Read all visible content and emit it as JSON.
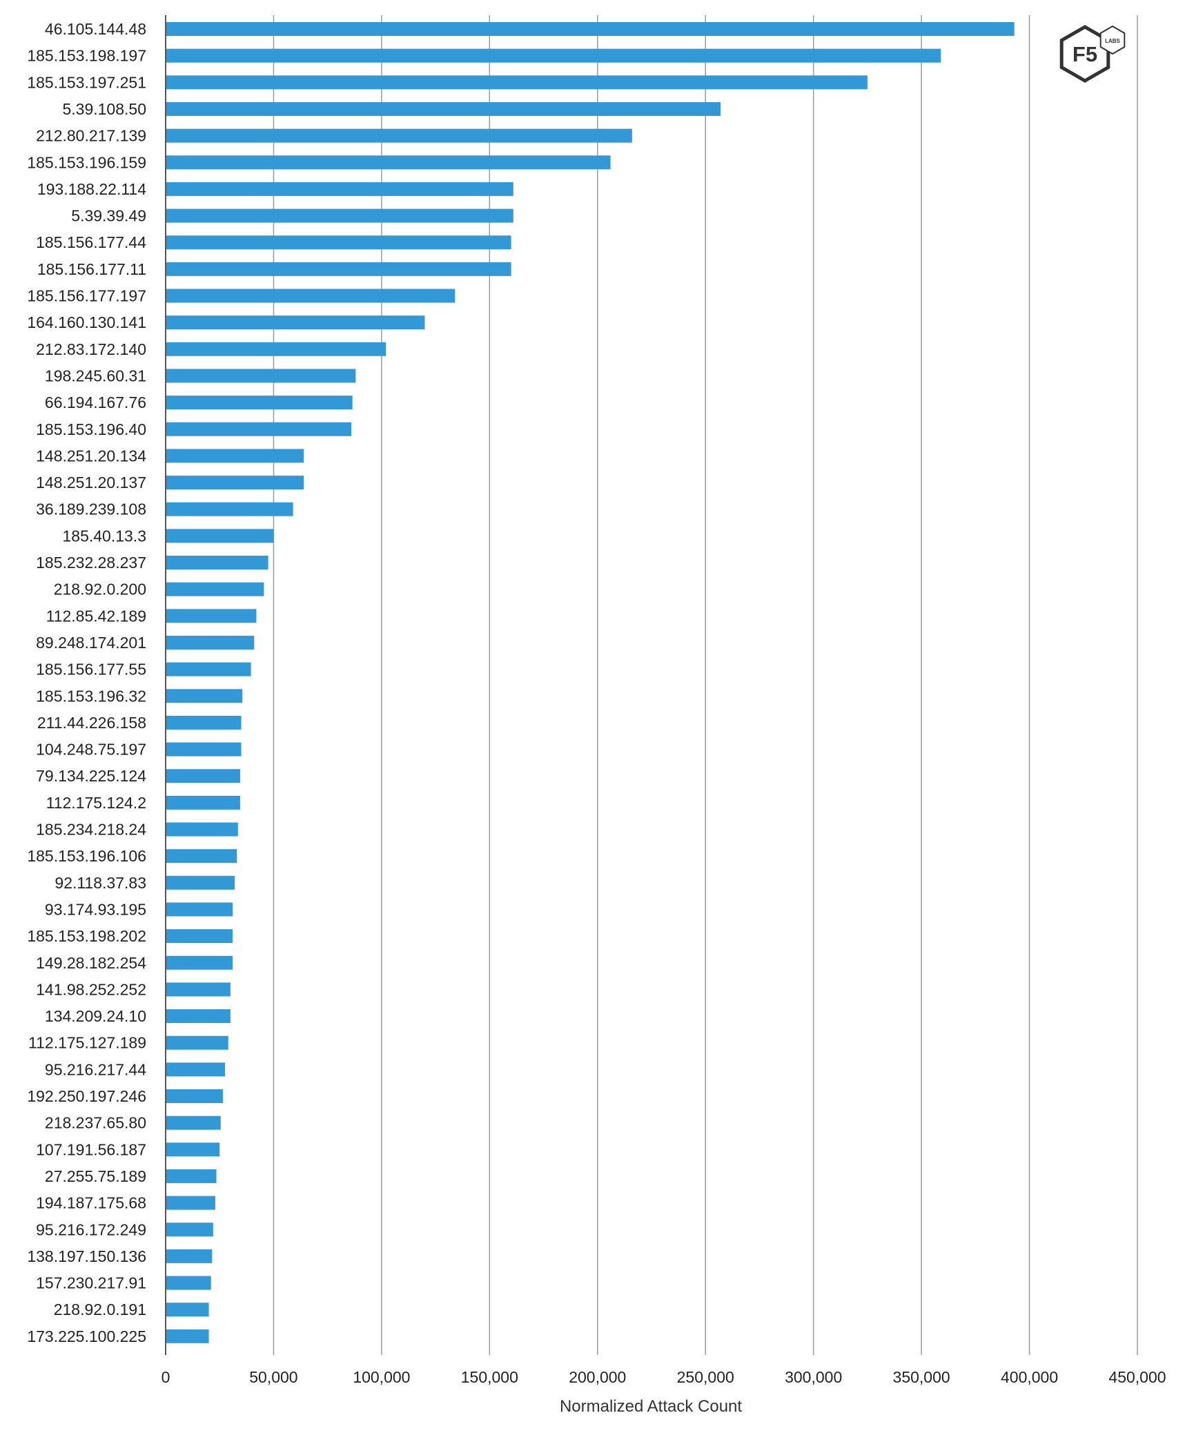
{
  "chart_data": {
    "type": "bar",
    "orientation": "horizontal",
    "title": "",
    "xlabel": "Normalized Attack Count",
    "ylabel": "",
    "xlim": [
      0,
      450000
    ],
    "xticks": [
      0,
      50000,
      100000,
      150000,
      200000,
      250000,
      300000,
      350000,
      400000,
      450000
    ],
    "xtick_labels": [
      "0",
      "50,000",
      "100,000",
      "150,000",
      "200,000",
      "250,000",
      "300,000",
      "350,000",
      "400,000",
      "450,000"
    ],
    "grid": "vertical",
    "bar_color": "#3399d6",
    "categories": [
      "46.105.144.48",
      "185.153.198.197",
      "185.153.197.251",
      "5.39.108.50",
      "212.80.217.139",
      "185.153.196.159",
      "193.188.22.114",
      "5.39.39.49",
      "185.156.177.44",
      "185.156.177.11",
      "185.156.177.197",
      "164.160.130.141",
      "212.83.172.140",
      "198.245.60.31",
      "66.194.167.76",
      "185.153.196.40",
      "148.251.20.134",
      "148.251.20.137",
      "36.189.239.108",
      "185.40.13.3",
      "185.232.28.237",
      "218.92.0.200",
      "112.85.42.189",
      "89.248.174.201",
      "185.156.177.55",
      "185.153.196.32",
      "211.44.226.158",
      "104.248.75.197",
      "79.134.225.124",
      "112.175.124.2",
      "185.234.218.24",
      "185.153.196.106",
      "92.118.37.83",
      "93.174.93.195",
      "185.153.198.202",
      "149.28.182.254",
      "141.98.252.252",
      "134.209.24.10",
      "112.175.127.189",
      "95.216.217.44",
      "192.250.197.246",
      "218.237.65.80",
      "107.191.56.187",
      "27.255.75.189",
      "194.187.175.68",
      "95.216.172.249",
      "138.197.150.136",
      "157.230.217.91",
      "218.92.0.191",
      "173.225.100.225"
    ],
    "values": [
      393000,
      359000,
      325000,
      257000,
      216000,
      206000,
      161000,
      161000,
      160000,
      160000,
      134000,
      120000,
      102000,
      88000,
      86500,
      86000,
      64000,
      64000,
      59000,
      50000,
      47500,
      45500,
      42000,
      41000,
      39500,
      35500,
      35000,
      35000,
      34500,
      34500,
      33500,
      33000,
      32000,
      31000,
      31000,
      31000,
      30000,
      30000,
      29000,
      27500,
      26500,
      25500,
      25000,
      23500,
      23000,
      22000,
      21500,
      21000,
      20000,
      20000
    ]
  },
  "logo": {
    "brand": "F5",
    "sub": "LABS"
  }
}
